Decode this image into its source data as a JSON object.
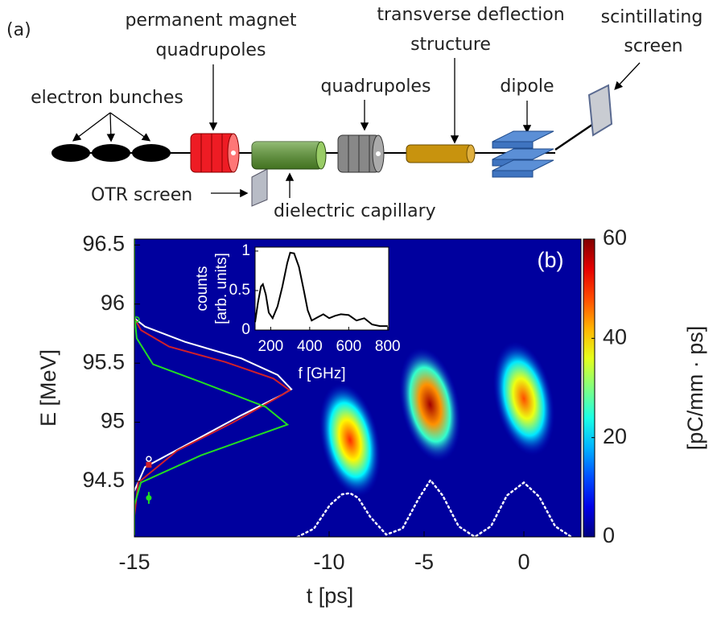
{
  "diagram": {
    "panel_label": "(a)",
    "labels": {
      "electron_bunches": "electron bunches",
      "pmq": [
        "permanent magnet",
        "quadrupoles"
      ],
      "tds": [
        "transverse deflection",
        "structure"
      ],
      "screen": [
        "scintillating",
        "screen"
      ],
      "quadrupoles": "quadrupoles",
      "dipole": "dipole",
      "otr": "OTR screen",
      "capillary": "dielectric capillary"
    }
  },
  "chart_data": [
    {
      "type": "heatmap",
      "panel_label": "(b)",
      "x_label": "t [ps]",
      "y_label": "E [MeV]",
      "colorbar_label": "[pC/mm · ps]",
      "xlim": [
        -15,
        2.86
      ],
      "xticks": [
        -15,
        -10,
        -5,
        0
      ],
      "ylim": [
        94.03,
        96.55
      ],
      "yticks": [
        94.5,
        95,
        95.5,
        96,
        96.5
      ],
      "clim": [
        0,
        60
      ],
      "cticks": [
        0,
        20,
        40,
        60
      ],
      "colormap": "jet",
      "bunches": [
        {
          "t": -8.9,
          "E": 94.85,
          "peak": 50
        },
        {
          "t": -4.7,
          "E": 95.15,
          "peak": 58
        },
        {
          "t": 0,
          "E": 95.2,
          "peak": 48
        }
      ],
      "series": [
        {
          "color": "#ffffff",
          "style": "solid",
          "x": [
            -15,
            -14.73,
            -13.49,
            -12.25,
            -11.22,
            -10.97,
            -11.32,
            -12.25,
            -13.7,
            -14.73,
            -15
          ],
          "values": [
            94.42,
            94.62,
            94.84,
            95.06,
            95.23,
            95.28,
            95.4,
            95.54,
            95.68,
            95.81,
            95.88
          ]
        },
        {
          "color": "#d0202a",
          "style": "solid",
          "x": [
            -15,
            -14.9,
            -13.9,
            -12.46,
            -11.43,
            -11.01,
            -11.43,
            -12.67,
            -14.11,
            -14.83,
            -15
          ],
          "values": [
            94.21,
            94.49,
            94.76,
            95.0,
            95.19,
            95.27,
            95.37,
            95.51,
            95.64,
            95.78,
            95.88
          ]
        },
        {
          "color": "#22dd22",
          "style": "solid",
          "x": [
            -15,
            -15,
            -14.83,
            -13.29,
            -11.84,
            -11.07,
            -11.63,
            -13.29,
            -14.52,
            -14.94,
            -15,
            -15
          ],
          "values": [
            94.05,
            94.3,
            94.49,
            94.72,
            94.89,
            94.98,
            95.13,
            95.34,
            95.49,
            95.71,
            95.91,
            96.55
          ]
        },
        {
          "color": "#ffffff",
          "style": "dotted",
          "x": [
            -10.81,
            -10.39,
            -9.96,
            -9.32,
            -8.9,
            -8.47,
            -7.84,
            -6.99,
            -6.14,
            -5.3,
            -4.68,
            -4.07,
            -3.27,
            -2.46,
            -1.65,
            -0.85,
            0,
            0.77,
            1.57,
            2.38
          ],
          "values": [
            94.03,
            94.1,
            94.3,
            94.39,
            94.4,
            94.36,
            94.2,
            94.05,
            94.1,
            94.35,
            94.51,
            94.38,
            94.12,
            94.03,
            94.12,
            94.38,
            94.49,
            94.37,
            94.12,
            94.03
          ]
        }
      ],
      "markers": [
        {
          "x": -14.63,
          "y": 94.64,
          "color": "#d0202a",
          "shape": "square"
        },
        {
          "x": -14.63,
          "y": 94.69,
          "color": "#ffffff",
          "shape": "circle"
        },
        {
          "x": -14.94,
          "y": 95.87,
          "color": "#22dd22",
          "shape": "circle"
        }
      ],
      "errorbar": {
        "x": -14.63,
        "y": 94.36,
        "error": 0.05,
        "color": "#22dd22"
      }
    },
    {
      "type": "line",
      "x_label": "f [GHz]",
      "y_label": [
        "counts",
        "[arb. units]"
      ],
      "xlim": [
        120,
        805
      ],
      "xticks": [
        200,
        400,
        600,
        800
      ],
      "ylim": [
        0,
        1.05
      ],
      "yticks": [
        0,
        0.5,
        1
      ],
      "color": "#000000",
      "x": [
        120,
        135,
        150,
        160,
        175,
        190,
        210,
        235,
        260,
        285,
        300,
        320,
        345,
        370,
        390,
        410,
        440,
        470,
        500,
        530,
        560,
        600,
        640,
        680,
        720,
        760,
        800
      ],
      "values": [
        0.1,
        0.35,
        0.55,
        0.58,
        0.45,
        0.22,
        0.15,
        0.3,
        0.55,
        0.85,
        0.98,
        0.97,
        0.8,
        0.5,
        0.25,
        0.12,
        0.16,
        0.2,
        0.15,
        0.18,
        0.2,
        0.19,
        0.12,
        0.15,
        0.07,
        0.05,
        0.05
      ]
    }
  ]
}
